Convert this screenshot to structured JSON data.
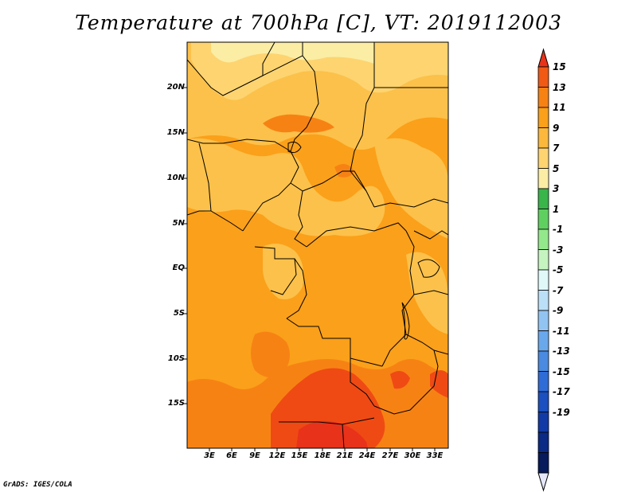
{
  "title": "Temperature at 700hPa [C], VT: 2019112003",
  "credit": "GrADS: IGES/COLA",
  "latitude_labels": [
    "20N",
    "15N",
    "10N",
    "5N",
    "EQ",
    "5S",
    "10S",
    "15S"
  ],
  "longitude_labels": [
    "3E",
    "6E",
    "9E",
    "12E",
    "15E",
    "18E",
    "21E",
    "24E",
    "27E",
    "30E",
    "33E"
  ],
  "colorbar": {
    "labels": [
      "15",
      "13",
      "11",
      "9",
      "7",
      "5",
      "3",
      "1",
      "-1",
      "-3",
      "-5",
      "-7",
      "-9",
      "-11",
      "-13",
      "-15",
      "-17",
      "-19"
    ],
    "colors": [
      "#e8321a",
      "#f05a14",
      "#f78214",
      "#fba01a",
      "#fcb83c",
      "#fdd470",
      "#fbeda4",
      "#39b54a",
      "#5fd060",
      "#94e88c",
      "#c6f4c0",
      "#e0f8f8",
      "#bcdff8",
      "#92c4f2",
      "#6aa8ec",
      "#4a8ae0",
      "#2f6cd6",
      "#1c4fbf",
      "#123aa6",
      "#0b2a86",
      "#061a5c",
      "#e6e8fa"
    ]
  },
  "colors": {
    "warm_top": "#e8321a",
    "hot_core": "#ef4a14",
    "orange_11": "#f78214",
    "orange_9": "#fba01a",
    "light_7": "#fcb83c",
    "pale_5": "#fdd470",
    "pale_3": "#fbeda4"
  }
}
